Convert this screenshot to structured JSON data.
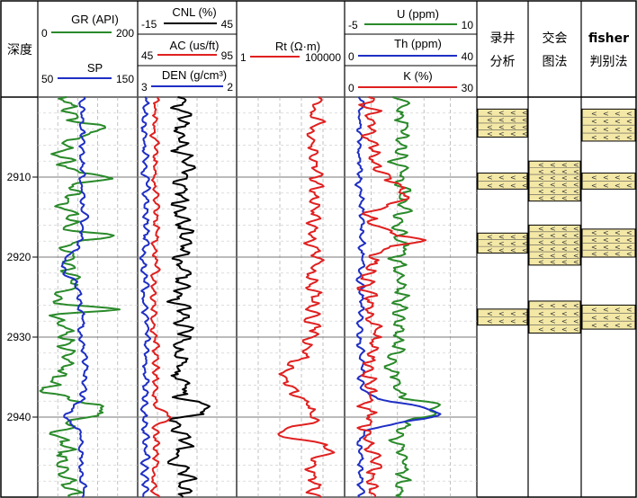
{
  "depth_header": "深度",
  "depth_ticks": [
    {
      "depth": 2910,
      "label": "2910"
    },
    {
      "depth": 2920,
      "label": "2920"
    },
    {
      "depth": 2930,
      "label": "2930"
    },
    {
      "depth": 2940,
      "label": "2940"
    }
  ],
  "depth_range": [
    2900,
    2950
  ],
  "tracks": {
    "gr_sp": {
      "curves": [
        {
          "label": "GR (API)",
          "min": "0",
          "max": "200",
          "color": "#2a8a2a"
        },
        {
          "label": "SP",
          "min": "50",
          "max": "150",
          "color": "#1f2fc4"
        }
      ]
    },
    "cnl_ac_den": {
      "curves": [
        {
          "label": "CNL (%)",
          "min": "-15",
          "max": "45",
          "color": "#000000"
        },
        {
          "label": "AC (us/ft)",
          "min": "45",
          "max": "95",
          "color": "#e02020"
        },
        {
          "label": "DEN (g/cm³)",
          "min": "3",
          "max": "2",
          "color": "#1f2fc4"
        }
      ]
    },
    "rt": {
      "curves": [
        {
          "label": "Rt (Ω·m)",
          "min": "1",
          "max": "100000",
          "color": "#e02020"
        }
      ]
    },
    "spectral": {
      "curves": [
        {
          "label": "U (ppm)",
          "min": "-5",
          "max": "10",
          "color": "#2a8a2a"
        },
        {
          "label": "Th (ppm)",
          "min": "0",
          "max": "40",
          "color": "#1f2fc4"
        },
        {
          "label": "K (%)",
          "min": "0",
          "max": "30",
          "color": "#e02020"
        }
      ]
    }
  },
  "interpretation_columns": [
    {
      "title_line1": "录井",
      "title_line2": "分析",
      "intervals": [
        [
          2901.5,
          2905.0
        ],
        [
          2909.5,
          2911.5
        ],
        [
          2917.0,
          2919.5
        ],
        [
          2926.5,
          2928.5
        ]
      ]
    },
    {
      "title_line1": "交会",
      "title_line2": "图法",
      "intervals": [
        [
          2908.0,
          2913.0
        ],
        [
          2916.0,
          2921.0
        ],
        [
          2925.5,
          2929.5
        ]
      ]
    },
    {
      "title_line1": "fisher",
      "title_line2": "判别法",
      "intervals": [
        [
          2901.5,
          2905.5
        ],
        [
          2909.5,
          2911.5
        ],
        [
          2916.5,
          2920.0
        ],
        [
          2926.0,
          2929.0
        ]
      ]
    }
  ],
  "colors": {
    "fill": "#f4e8a6",
    "grid": "#9a9a9a",
    "border": "#000000"
  }
}
